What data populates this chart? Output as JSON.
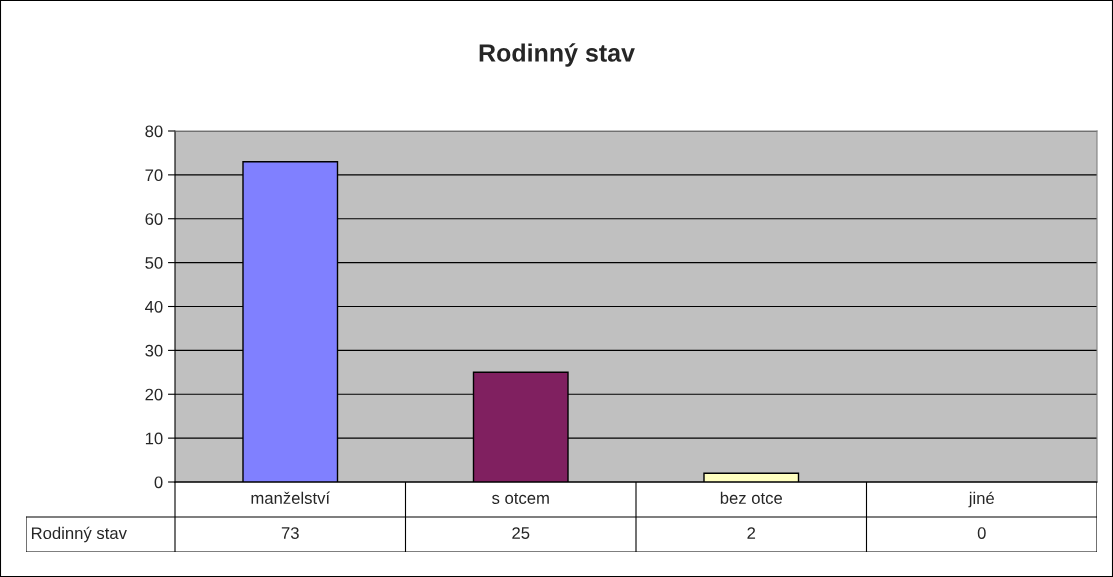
{
  "chart_data": {
    "type": "bar",
    "title": "Rodinný stav",
    "categories": [
      "manželství",
      "s otcem",
      "bez otce",
      "jiné"
    ],
    "series": [
      {
        "name": "Rodinný stav",
        "colors": [
          "#8080ff",
          "#802060",
          "#ffffc0",
          null
        ],
        "values": [
          73,
          25,
          2,
          0
        ]
      }
    ],
    "ylim": [
      0,
      80
    ],
    "yticks": [
      0,
      10,
      20,
      30,
      40,
      50,
      60,
      70,
      80
    ],
    "grid": "y",
    "data_labels": true
  }
}
